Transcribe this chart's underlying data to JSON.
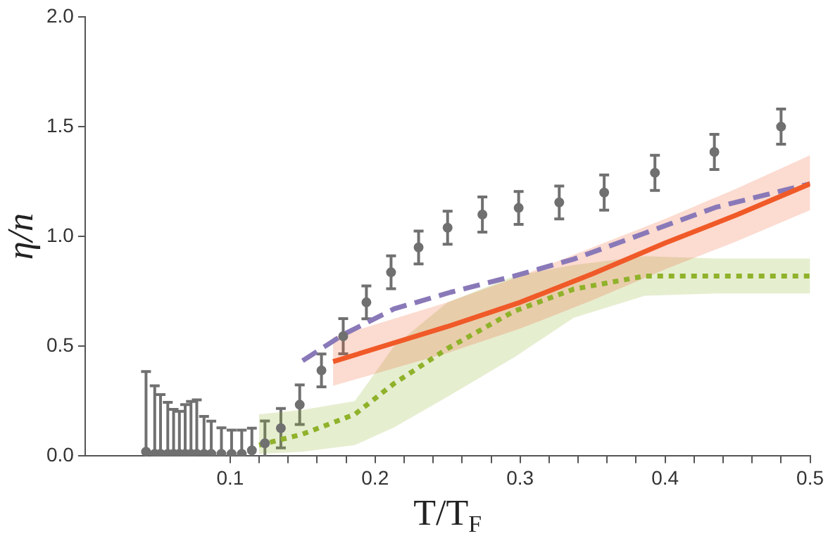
{
  "chart_data": {
    "type": "line",
    "xlabel": "T/T$_{F}$",
    "ylabel": "η/n",
    "xlim": [
      0,
      0.5
    ],
    "ylim": [
      0,
      2
    ],
    "xticks": [
      0.1,
      {
        "value": 0.12,
        "label": null
      },
      {
        "value": 0.14,
        "label": null
      },
      {
        "value": 0.16,
        "label": null
      },
      {
        "value": 0.18,
        "label": null
      },
      0.2,
      {
        "value": 0.22,
        "label": null
      },
      {
        "value": 0.24,
        "label": null
      },
      {
        "value": 0.26,
        "label": null
      },
      {
        "value": 0.28,
        "label": null
      },
      0.3,
      {
        "value": 0.32,
        "label": null
      },
      {
        "value": 0.34,
        "label": null
      },
      {
        "value": 0.36,
        "label": null
      },
      {
        "value": 0.38,
        "label": null
      },
      0.4,
      {
        "value": 0.42,
        "label": null
      },
      {
        "value": 0.44,
        "label": null
      },
      {
        "value": 0.46,
        "label": null
      },
      {
        "value": 0.48,
        "label": null
      },
      0.5
    ],
    "yticks": [
      {
        "value": 0,
        "label": "0.0"
      },
      0.5,
      {
        "value": 1,
        "label": "1.0"
      },
      1.5,
      {
        "value": 2,
        "label": "2.0"
      }
    ],
    "series": [
      {
        "color": "#f05a28",
        "line_style": "solid",
        "marker": "none",
        "x": [
          0.171,
          0.25,
          0.3,
          0.35,
          0.4,
          0.45,
          0.5
        ],
        "values": [
          0.43,
          0.59,
          0.7,
          0.83,
          0.97,
          1.1,
          1.24
        ],
        "upper": [
          0.54,
          0.7,
          0.82,
          0.95,
          1.08,
          1.22,
          1.37
        ],
        "lower": [
          0.32,
          0.47,
          0.58,
          0.71,
          0.85,
          0.98,
          1.12
        ]
      },
      {
        "color": "#8fb22a",
        "line_style": "dotted",
        "marker": "none",
        "x": [
          0.12,
          0.15,
          0.186,
          0.213,
          0.25,
          0.296,
          0.337,
          0.386,
          0.435,
          0.5
        ],
        "values": [
          0.05,
          0.1,
          0.19,
          0.33,
          0.49,
          0.66,
          0.76,
          0.82,
          0.82,
          0.82
        ],
        "upper": [
          0.19,
          0.21,
          0.25,
          0.5,
          0.7,
          0.82,
          0.87,
          0.91,
          0.9,
          0.9
        ],
        "lower": [
          0.01,
          0.02,
          0.05,
          0.13,
          0.27,
          0.45,
          0.63,
          0.73,
          0.74,
          0.74
        ]
      },
      {
        "color": "#8a79b8",
        "line_style": "dashed",
        "marker": "none",
        "x": [
          0.15,
          0.178,
          0.213,
          0.252,
          0.296,
          0.337,
          0.386,
          0.435,
          0.5
        ],
        "values": [
          0.434,
          0.553,
          0.67,
          0.746,
          0.82,
          0.897,
          1.015,
          1.133,
          1.24
        ]
      },
      {
        "type": "scatter",
        "color": "#707070",
        "marker": "circle",
        "x": [
          0.042,
          0.048,
          0.052,
          0.057,
          0.061,
          0.065,
          0.069,
          0.073,
          0.077,
          0.082,
          0.087,
          0.094,
          0.101,
          0.108,
          0.115,
          0.124,
          0.135,
          0.148,
          0.163,
          0.178,
          0.194,
          0.211,
          0.23,
          0.25,
          0.274,
          0.299,
          0.327,
          0.358,
          0.393,
          0.434,
          0.48
        ],
        "values": [
          0.02,
          0.01,
          0.01,
          0.01,
          0.01,
          0.01,
          0.01,
          0.01,
          0.01,
          0.01,
          0.01,
          0.01,
          0.01,
          0.01,
          0.026,
          0.058,
          0.127,
          0.234,
          0.39,
          0.546,
          0.7,
          0.837,
          0.95,
          1.04,
          1.1,
          1.13,
          1.155,
          1.2,
          1.29,
          1.385,
          1.5
        ],
        "errors": [
          [
            0,
            0.385
          ],
          [
            0,
            0.32
          ],
          [
            0,
            0.28
          ],
          [
            0,
            0.245
          ],
          [
            0,
            0.213
          ],
          [
            0,
            0.204
          ],
          [
            0,
            0.234
          ],
          [
            0,
            0.249
          ],
          [
            0,
            0.256
          ],
          [
            0,
            0.181
          ],
          [
            0,
            0.159
          ],
          [
            0,
            0.129
          ],
          [
            0,
            0.118
          ],
          [
            0,
            0.118
          ],
          [
            0,
            0.127
          ],
          [
            0,
            0.16
          ],
          0.09,
          0.09,
          0.075,
          0.08,
          0.075,
          0.075,
          0.075,
          0.075,
          0.08,
          0.075,
          0.075,
          0.08,
          0.08,
          0.08,
          0.08
        ]
      }
    ]
  }
}
